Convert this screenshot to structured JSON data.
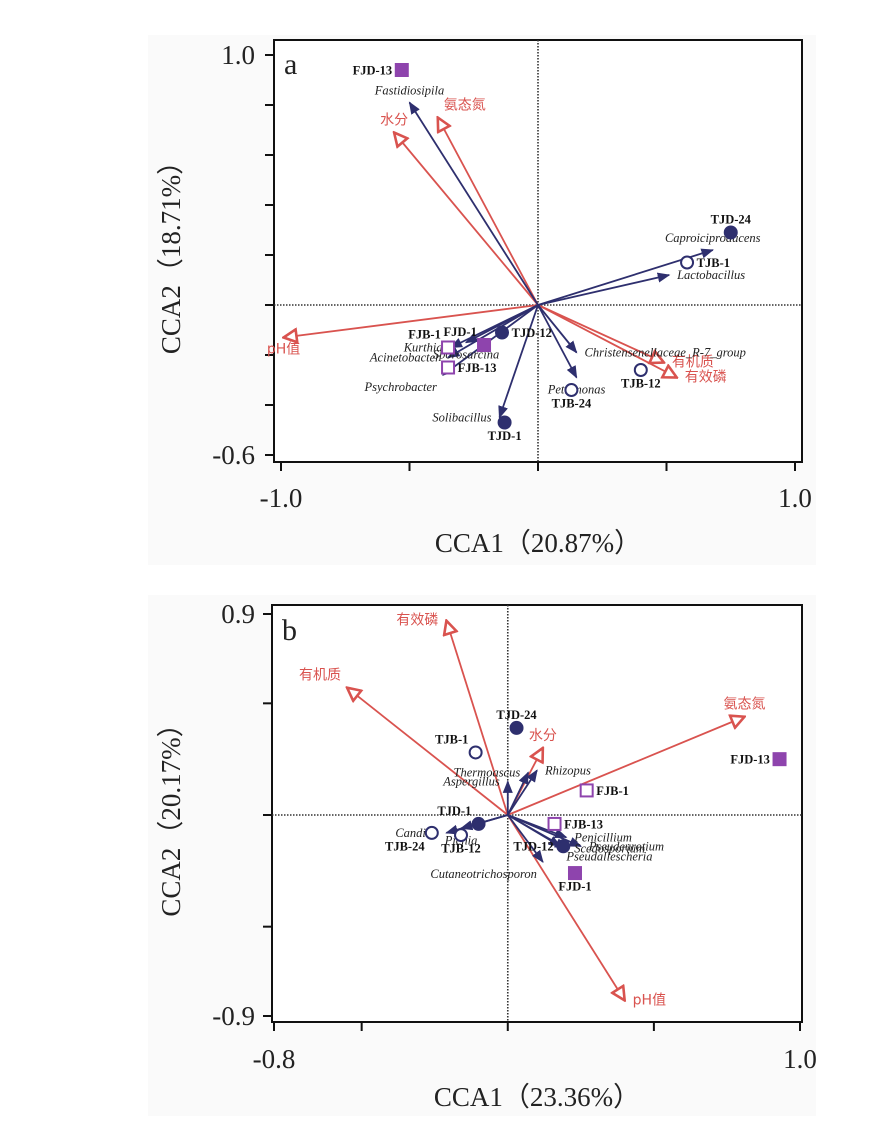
{
  "chart_data": [
    {
      "type": "scatter",
      "subtype": "CCA biplot",
      "panel": "a",
      "xlabel": "CCA1（20.87%）",
      "ylabel": "CCA2（18.71%）",
      "xlim": [
        -1.0,
        1.0
      ],
      "ylim": [
        -0.6,
        1.0
      ],
      "xticks": [
        -1.0,
        -0.5,
        0,
        0.5,
        1.0
      ],
      "xtick_labels": [
        "-1.0",
        "",
        "",
        "",
        "1.0"
      ],
      "yticks": [
        1.0,
        0.8,
        0.6,
        0.4,
        0.2,
        0,
        -0.2,
        -0.4,
        -0.6
      ],
      "ytick_labels": [
        "1.0",
        "",
        "",
        "",
        "",
        "",
        "",
        "",
        "-0.6"
      ],
      "env_color": "#d9534f",
      "species_color": "#2e2f6e",
      "sample_circle_color": "#2e2f6e",
      "sample_square_color": "#8e44ad",
      "samples": [
        {
          "name": "FJD-13",
          "x": -0.53,
          "y": 0.94,
          "marker": "square-filled",
          "label_pos": "left"
        },
        {
          "name": "FJB-1",
          "x": -0.35,
          "y": -0.17,
          "marker": "square-open",
          "label_pos": "upper-left"
        },
        {
          "name": "FJD-1",
          "x": -0.21,
          "y": -0.16,
          "marker": "square-filled",
          "label_pos": "upper-left"
        },
        {
          "name": "TJD-12",
          "x": -0.14,
          "y": -0.11,
          "marker": "circle-filled",
          "label_pos": "right"
        },
        {
          "name": "FJB-13",
          "x": -0.35,
          "y": -0.25,
          "marker": "square-open",
          "label_pos": "right"
        },
        {
          "name": "TJD-1",
          "x": -0.13,
          "y": -0.47,
          "marker": "circle-filled",
          "label_pos": "below"
        },
        {
          "name": "TJD-24",
          "x": 0.75,
          "y": 0.29,
          "marker": "circle-filled",
          "label_pos": "above"
        },
        {
          "name": "TJB-1",
          "x": 0.58,
          "y": 0.17,
          "marker": "circle-open",
          "label_pos": "right"
        },
        {
          "name": "TJB-12",
          "x": 0.4,
          "y": -0.26,
          "marker": "circle-open",
          "label_pos": "below"
        },
        {
          "name": "TJB-24",
          "x": 0.13,
          "y": -0.34,
          "marker": "circle-open",
          "label_pos": "below"
        }
      ],
      "env_vectors": [
        {
          "name": "氨态氮",
          "x": -0.39,
          "y": 0.75,
          "label_pos": "above-right"
        },
        {
          "name": "水分",
          "x": -0.56,
          "y": 0.69,
          "label_pos": "above"
        },
        {
          "name": "pH值",
          "x": -0.99,
          "y": -0.13,
          "label_pos": "below"
        },
        {
          "name": "有机质",
          "x": 0.49,
          "y": -0.23,
          "label_pos": "right"
        },
        {
          "name": "有效磷",
          "x": 0.54,
          "y": -0.29,
          "label_pos": "right"
        }
      ],
      "species_vectors": [
        {
          "name": "Fastidiosipila",
          "x": -0.5,
          "y": 0.81,
          "label_pos": "above"
        },
        {
          "name": "Caproiciproducens",
          "x": 0.68,
          "y": 0.22,
          "label_pos": "above"
        },
        {
          "name": "Lactobacillus",
          "x": 0.51,
          "y": 0.12,
          "label_pos": "right"
        },
        {
          "name": "Christensenellaceae_R-7_group",
          "x": 0.15,
          "y": -0.19,
          "label_pos": "right"
        },
        {
          "name": "Petrimonas",
          "x": 0.15,
          "y": -0.29,
          "label_pos": "below"
        },
        {
          "name": "Solibacillus",
          "x": -0.15,
          "y": -0.45,
          "label_pos": "left"
        },
        {
          "name": "Kurthia",
          "x": -0.34,
          "y": -0.17,
          "label_pos": "left"
        },
        {
          "name": "Acinetobacter",
          "x": -0.35,
          "y": -0.21,
          "label_pos": "left"
        },
        {
          "name": "Psychrobacter",
          "x": -0.37,
          "y": -0.28,
          "label_pos": "below-left"
        },
        {
          "name": "Sporosarcina",
          "x": -0.28,
          "y": -0.15,
          "label_pos": "below"
        }
      ]
    },
    {
      "type": "scatter",
      "subtype": "CCA biplot",
      "panel": "b",
      "xlabel": "CCA1（23.36%）",
      "ylabel": "CCA2（20.17%）",
      "xlim": [
        -0.8,
        1.0
      ],
      "ylim": [
        -0.9,
        0.9
      ],
      "xticks": [
        -0.8,
        -0.5,
        0,
        0.5,
        1.0
      ],
      "xtick_labels": [
        "-0.8",
        "",
        "",
        "",
        "1.0"
      ],
      "yticks": [
        0.9,
        0.5,
        0,
        -0.5,
        -0.9
      ],
      "ytick_labels": [
        "0.9",
        "",
        "",
        "",
        "-0.9"
      ],
      "env_color": "#d9534f",
      "species_color": "#2e2f6e",
      "sample_circle_color": "#2e2f6e",
      "sample_square_color": "#8e44ad",
      "samples": [
        {
          "name": "TJD-24",
          "x": 0.03,
          "y": 0.39,
          "marker": "circle-filled",
          "label_pos": "above"
        },
        {
          "name": "TJB-1",
          "x": -0.11,
          "y": 0.28,
          "marker": "circle-open",
          "label_pos": "upper-left"
        },
        {
          "name": "FJB-1",
          "x": 0.27,
          "y": 0.11,
          "marker": "square-open",
          "label_pos": "right"
        },
        {
          "name": "FJD-13",
          "x": 0.93,
          "y": 0.25,
          "marker": "square-filled",
          "label_pos": "left"
        },
        {
          "name": "TJD-1",
          "x": -0.1,
          "y": -0.04,
          "marker": "circle-filled",
          "label_pos": "upper-left"
        },
        {
          "name": "TJB-24",
          "x": -0.26,
          "y": -0.08,
          "marker": "circle-open",
          "label_pos": "below-left"
        },
        {
          "name": "TJB-12",
          "x": -0.16,
          "y": -0.09,
          "marker": "circle-open",
          "label_pos": "below"
        },
        {
          "name": "FJB-13",
          "x": 0.16,
          "y": -0.04,
          "marker": "square-open",
          "label_pos": "right"
        },
        {
          "name": "TJD-12",
          "x": 0.19,
          "y": -0.14,
          "marker": "circle-filled",
          "label_pos": "left"
        },
        {
          "name": "FJD-1",
          "x": 0.23,
          "y": -0.26,
          "marker": "square-filled",
          "label_pos": "below"
        }
      ],
      "env_vectors": [
        {
          "name": "有效磷",
          "x": -0.21,
          "y": 0.87,
          "label_pos": "left"
        },
        {
          "name": "有机质",
          "x": -0.55,
          "y": 0.57,
          "label_pos": "above-left"
        },
        {
          "name": "水分",
          "x": 0.12,
          "y": 0.3,
          "label_pos": "above"
        },
        {
          "name": "氨态氮",
          "x": 0.81,
          "y": 0.44,
          "label_pos": "above"
        },
        {
          "name": "pH值",
          "x": 0.4,
          "y": -0.83,
          "label_pos": "right"
        }
      ],
      "species_vectors": [
        {
          "name": "Thermoascus",
          "x": 0.07,
          "y": 0.19,
          "label_pos": "left"
        },
        {
          "name": "Rhizopus",
          "x": 0.1,
          "y": 0.2,
          "label_pos": "right"
        },
        {
          "name": "Aspergillus",
          "x": 0.0,
          "y": 0.15,
          "label_pos": "left"
        },
        {
          "name": "Candida",
          "x": -0.21,
          "y": -0.08,
          "label_pos": "left"
        },
        {
          "name": "Pichia",
          "x": -0.16,
          "y": -0.06,
          "label_pos": "below"
        },
        {
          "name": "Penicillium",
          "x": 0.2,
          "y": -0.1,
          "label_pos": "right"
        },
        {
          "name": "Pseudeurotium",
          "x": 0.25,
          "y": -0.14,
          "label_pos": "right"
        },
        {
          "name": "Scedosporium",
          "x": 0.2,
          "y": -0.15,
          "label_pos": "right"
        },
        {
          "name": "Pseudallescheria",
          "x": 0.18,
          "y": -0.14,
          "label_pos": "below-right"
        },
        {
          "name": "Cutaneotrichosporon",
          "x": 0.12,
          "y": -0.21,
          "label_pos": "below-left"
        }
      ]
    }
  ],
  "panels": {
    "a": {
      "letter": "a"
    },
    "b": {
      "letter": "b"
    }
  }
}
